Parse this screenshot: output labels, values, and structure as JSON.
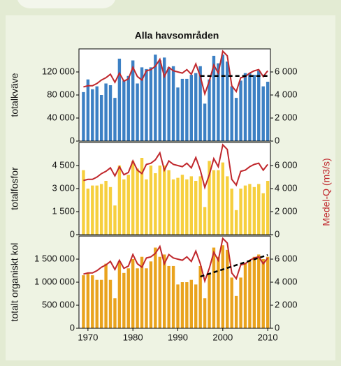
{
  "chart_data": [
    {
      "type": "bar",
      "title": "Alla havsområden",
      "ylabel": "totalkväve",
      "x": [
        1969,
        1970,
        1971,
        1972,
        1973,
        1974,
        1975,
        1976,
        1977,
        1978,
        1979,
        1980,
        1981,
        1982,
        1983,
        1984,
        1985,
        1986,
        1987,
        1988,
        1989,
        1990,
        1991,
        1992,
        1993,
        1994,
        1995,
        1996,
        1997,
        1998,
        1999,
        2000,
        2001,
        2002,
        2003,
        2004,
        2005,
        2006,
        2007,
        2008,
        2009,
        2010
      ],
      "xlim": [
        1968,
        2010.6
      ],
      "series": [
        {
          "color": "#3c80c4",
          "values": [
            85000,
            107000,
            90000,
            95000,
            80000,
            100000,
            97000,
            75000,
            143000,
            105000,
            113000,
            140000,
            100000,
            128000,
            125000,
            128000,
            150000,
            140000,
            145000,
            128000,
            130000,
            93000,
            108000,
            108000,
            115000,
            118000,
            130000,
            65000,
            107000,
            148000,
            135000,
            150000,
            138000,
            95000,
            75000,
            105000,
            118000,
            118000,
            115000,
            122000,
            95000,
            103000
          ]
        },
        {
          "color": "#c0282d",
          "axis": "y2",
          "values": [
            4700,
            4800,
            4800,
            5000,
            5300,
            5500,
            5800,
            5100,
            5900,
            5200,
            5400,
            6400,
            5600,
            5300,
            6100,
            6200,
            6500,
            7100,
            5600,
            6400,
            6100,
            6000,
            5900,
            6200,
            5800,
            6700,
            5600,
            4100,
            5200,
            6600,
            5900,
            7800,
            7400,
            4800,
            4300,
            5500,
            5600,
            5900,
            6100,
            6200,
            5600,
            6100
          ]
        }
      ],
      "trend": {
        "x": [
          1995,
          2010
        ],
        "values": [
          113000,
          113000
        ]
      },
      "ylim": [
        0,
        160000
      ],
      "yticks": [
        0,
        {
          "value": 40000,
          "label": "40 000"
        },
        {
          "value": 80000,
          "label": "80 000"
        },
        {
          "value": 120000,
          "label": "120 000"
        }
      ],
      "y2lim": [
        0,
        8000
      ],
      "y2ticks": [
        0,
        {
          "value": 2000,
          "label": "2 000"
        },
        {
          "value": 4000,
          "label": "4 000"
        },
        {
          "value": 6000,
          "label": "6 000"
        }
      ]
    },
    {
      "type": "bar",
      "ylabel": "totalfosfor",
      "y2label": "Medel-Q (m3/s)",
      "x": [
        1969,
        1970,
        1971,
        1972,
        1973,
        1974,
        1975,
        1976,
        1977,
        1978,
        1979,
        1980,
        1981,
        1982,
        1983,
        1984,
        1985,
        1986,
        1987,
        1988,
        1989,
        1990,
        1991,
        1992,
        1993,
        1994,
        1995,
        1996,
        1997,
        1998,
        1999,
        2000,
        2001,
        2002,
        2003,
        2004,
        2005,
        2006,
        2007,
        2008,
        2009,
        2010
      ],
      "xlim": [
        1968,
        2010.6
      ],
      "series": [
        {
          "color": "#f6cf3e",
          "values": [
            4200,
            3000,
            3200,
            3200,
            3300,
            3500,
            3100,
            1900,
            4500,
            3600,
            3900,
            4800,
            4300,
            5000,
            3600,
            4500,
            4000,
            4500,
            4500,
            4200,
            3600,
            3700,
            3900,
            3600,
            3800,
            3500,
            3800,
            1800,
            4800,
            4200,
            4200,
            4700,
            3800,
            3000,
            1600,
            3000,
            3200,
            3300,
            3100,
            3300,
            2700,
            3500
          ]
        },
        {
          "color": "#c0282d",
          "axis": "y2",
          "values": [
            4700,
            4800,
            4800,
            5000,
            5300,
            5500,
            5800,
            5100,
            5900,
            5200,
            5400,
            6400,
            5600,
            5300,
            6100,
            6200,
            6500,
            7100,
            5600,
            6400,
            6100,
            6000,
            5900,
            6200,
            5800,
            6700,
            5600,
            4100,
            5200,
            6600,
            5900,
            7800,
            7400,
            4800,
            4300,
            5500,
            5600,
            5900,
            6100,
            6200,
            5600,
            6100
          ]
        }
      ],
      "ylim": [
        0,
        6000
      ],
      "yticks": [
        0,
        {
          "value": 1500,
          "label": "1 500"
        },
        {
          "value": 3000,
          "label": "3 000"
        },
        {
          "value": 4500,
          "label": "4 500"
        }
      ],
      "y2lim": [
        0,
        8000
      ],
      "y2ticks": [
        0,
        {
          "value": 2000,
          "label": "2 000"
        },
        {
          "value": 4000,
          "label": "4 000"
        },
        {
          "value": 6000,
          "label": "6 000"
        }
      ]
    },
    {
      "type": "bar",
      "ylabel": "totalt organiskt kol",
      "x": [
        1969,
        1970,
        1971,
        1972,
        1973,
        1974,
        1975,
        1976,
        1977,
        1978,
        1979,
        1980,
        1981,
        1982,
        1983,
        1984,
        1985,
        1986,
        1987,
        1988,
        1989,
        1990,
        1991,
        1992,
        1993,
        1994,
        1995,
        1996,
        1997,
        1998,
        1999,
        2000,
        2001,
        2002,
        2003,
        2004,
        2005,
        2006,
        2007,
        2008,
        2009,
        2010
      ],
      "xlim": [
        1968,
        2010.6
      ],
      "xticks": [
        1970,
        1980,
        1990,
        2000,
        2010
      ],
      "series": [
        {
          "color": "#e9a31e",
          "values": [
            1150000,
            1200000,
            1150000,
            1050000,
            1050000,
            1400000,
            1050000,
            650000,
            1450000,
            1200000,
            1300000,
            1500000,
            1300000,
            1550000,
            1300000,
            1450000,
            1750000,
            1550000,
            1600000,
            1350000,
            1350000,
            950000,
            1000000,
            1000000,
            1050000,
            950000,
            1350000,
            650000,
            1200000,
            1750000,
            1550000,
            1800000,
            1700000,
            1100000,
            700000,
            1100000,
            1400000,
            1450000,
            1550000,
            1600000,
            1500000,
            1550000
          ]
        },
        {
          "color": "#c0282d",
          "axis": "y2",
          "values": [
            4700,
            4800,
            4800,
            5000,
            5300,
            5500,
            5800,
            5100,
            5900,
            5200,
            5400,
            6400,
            5600,
            5300,
            6100,
            6200,
            6500,
            7100,
            5600,
            6400,
            6100,
            6000,
            5900,
            6200,
            5800,
            6700,
            5600,
            4100,
            5200,
            6600,
            5900,
            7800,
            7400,
            4800,
            4300,
            5500,
            5600,
            5900,
            6100,
            6200,
            5600,
            6100
          ]
        }
      ],
      "trend": {
        "x": [
          1995,
          2010
        ],
        "values": [
          1120000,
          1590000
        ]
      },
      "ylim": [
        0,
        2000000
      ],
      "yticks": [
        0,
        {
          "value": 500000,
          "label": "500 000"
        },
        {
          "value": 1000000,
          "label": "1 000 000"
        },
        {
          "value": 1500000,
          "label": "1 500 000"
        }
      ],
      "y2lim": [
        0,
        8000
      ],
      "y2ticks": [
        0,
        {
          "value": 2000,
          "label": "2 000"
        },
        {
          "value": 4000,
          "label": "4 000"
        },
        {
          "value": 6000,
          "label": "6 000"
        }
      ]
    }
  ]
}
